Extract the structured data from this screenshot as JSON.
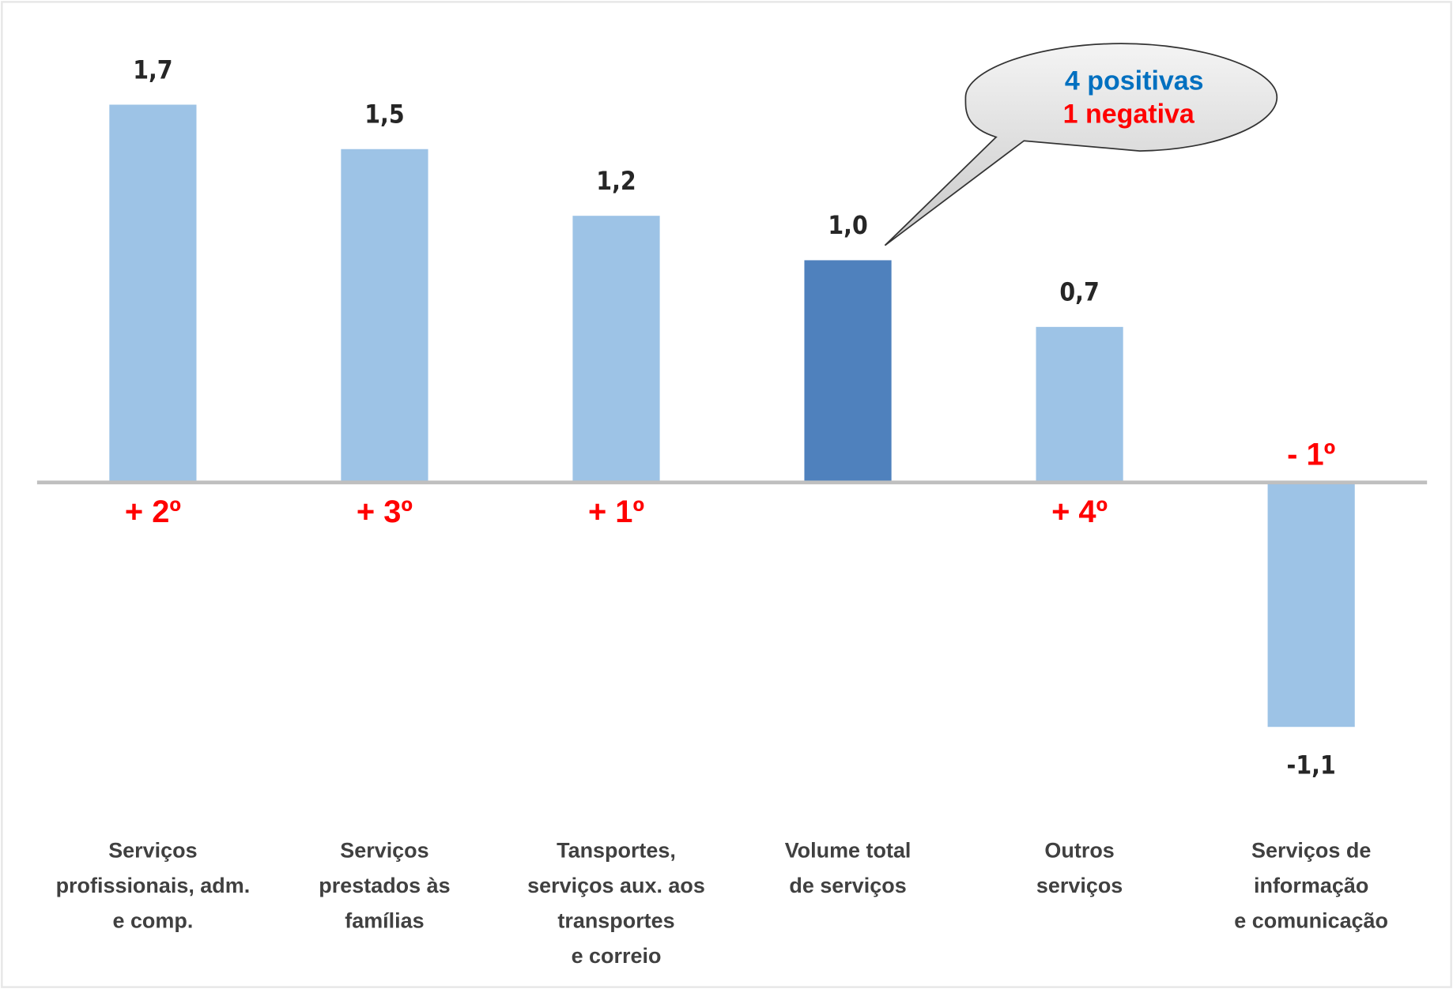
{
  "chart_data": {
    "type": "bar",
    "categories": [
      "Serviços\nprofissionais, adm.\ne comp.",
      "Serviços\nprestados às\nfamílias",
      "Tansportes,\nserviços aux. aos\ntransportes\ne correio",
      "Volume total\nde serviços",
      "Outros\nserviços",
      "Serviços de\ninformação\ne comunicação"
    ],
    "values": [
      1.7,
      1.5,
      1.2,
      1.0,
      0.7,
      -1.1
    ],
    "value_labels": [
      "1,7",
      "1,5",
      "1,2",
      "1,0",
      "0,7",
      "-1,1"
    ],
    "colors": [
      "#9dc3e6",
      "#9dc3e6",
      "#9dc3e6",
      "#4f81bd",
      "#9dc3e6",
      "#9dc3e6"
    ],
    "rank_labels": [
      "+ 2º",
      "+ 3º",
      "+ 1º",
      null,
      "+ 4º",
      "- 1º"
    ],
    "annotations": [
      "4 positivas",
      "1 negativa"
    ],
    "ylim": [
      -1.3,
      1.9
    ],
    "grid": false
  }
}
